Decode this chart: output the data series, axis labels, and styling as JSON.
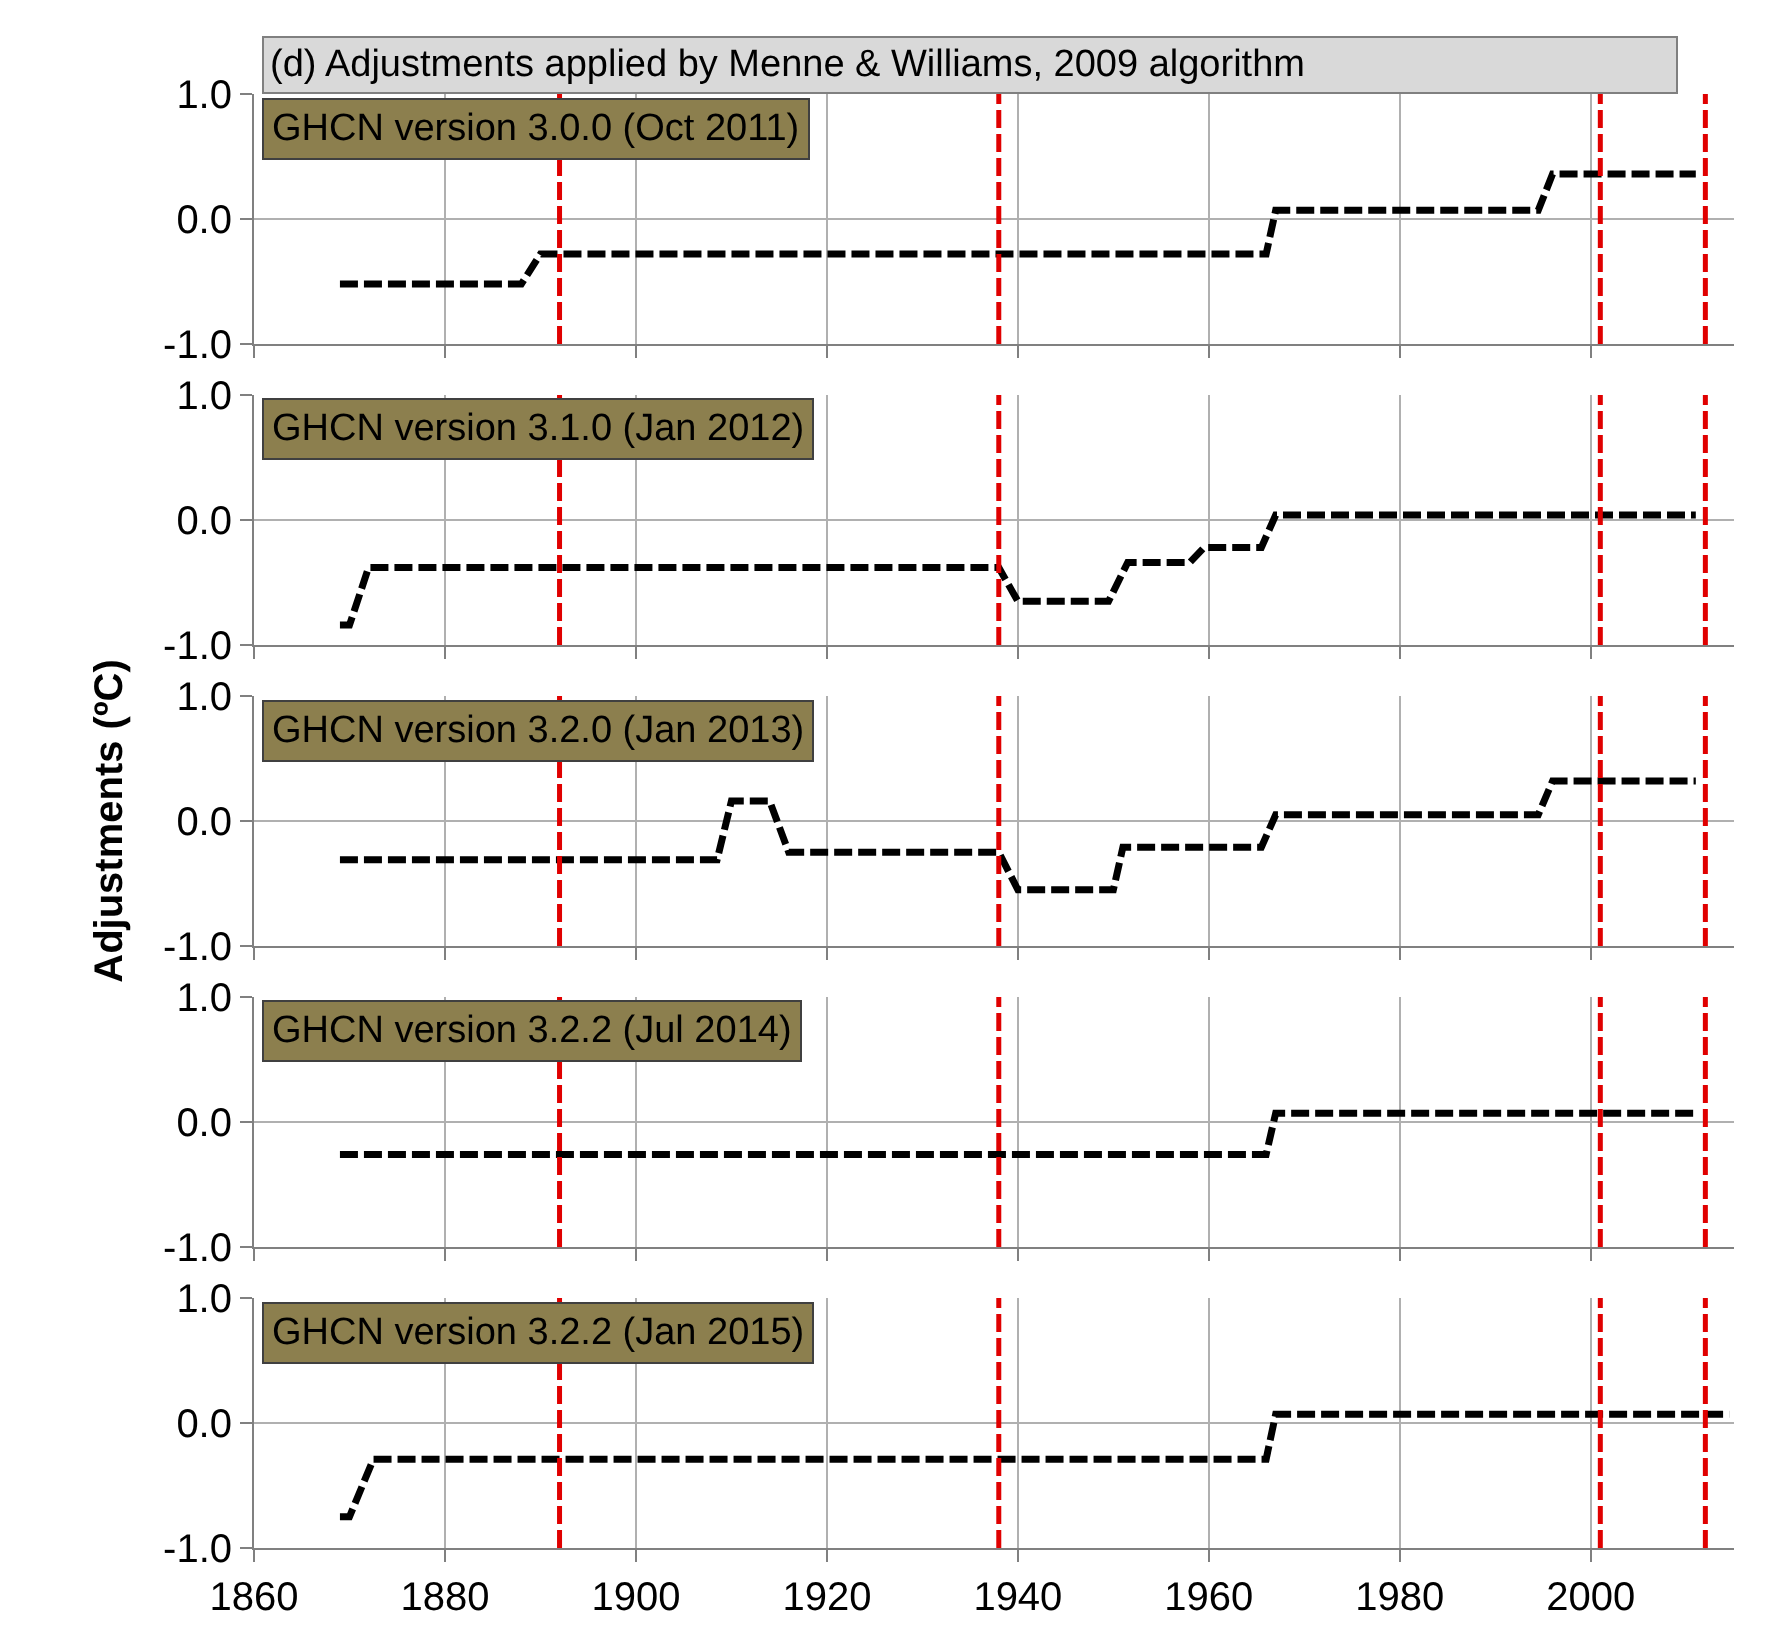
{
  "chart_data": [
    {
      "type": "line",
      "title": "(d) Adjustments applied by Menne & Williams, 2009 algorithm",
      "annotations": [
        "GHCN version 3.0.0 (Oct 2011)"
      ],
      "tick_labels": "y",
      "line_style": "dashed",
      "grid": true,
      "xlim": [
        1860,
        2015
      ],
      "xticks": [
        1860,
        1880,
        1900,
        1920,
        1940,
        1960,
        1980,
        2000
      ],
      "ylim": [
        -1,
        1
      ],
      "yticks": [
        {
          "value": -1,
          "label": "-1.0"
        },
        {
          "value": 0,
          "label": "0.0"
        },
        {
          "value": 1,
          "label": "1.0"
        }
      ],
      "series": [
        {
          "color": "#000000",
          "x": [
            1869,
            1888,
            1890,
            1966,
            1967,
            1994.5,
            1996,
            2011
          ],
          "values": [
            -0.52,
            -0.52,
            -0.28,
            -0.28,
            0.07,
            0.07,
            0.36,
            0.36
          ]
        }
      ],
      "ref_lines": [
        {
          "axis": "x",
          "value": 1892,
          "color": "#e00000",
          "line_style": "dashed"
        },
        {
          "axis": "x",
          "value": 1938,
          "color": "#e00000",
          "line_style": "dashed"
        },
        {
          "axis": "x",
          "value": 2001,
          "color": "#e00000",
          "line_style": "dashed"
        },
        {
          "axis": "x",
          "value": 2012,
          "color": "#e00000",
          "line_style": "dashed"
        }
      ]
    },
    {
      "type": "line",
      "annotations": [
        "GHCN version 3.1.0 (Jan 2012)"
      ],
      "tick_labels": "y",
      "line_style": "dashed",
      "grid": true,
      "xlim": [
        1860,
        2015
      ],
      "xticks": [
        1860,
        1880,
        1900,
        1920,
        1940,
        1960,
        1980,
        2000
      ],
      "ylim": [
        -1,
        1
      ],
      "yticks": [
        {
          "value": -1,
          "label": "-1.0"
        },
        {
          "value": 0,
          "label": "0.0"
        },
        {
          "value": 1,
          "label": "1.0"
        }
      ],
      "series": [
        {
          "color": "#000000",
          "x": [
            1869,
            1870,
            1872,
            1938,
            1940,
            1949.5,
            1951.5,
            1958,
            1959.5,
            1965.5,
            1967,
            2011
          ],
          "values": [
            -0.84,
            -0.84,
            -0.38,
            -0.38,
            -0.65,
            -0.65,
            -0.34,
            -0.34,
            -0.22,
            -0.22,
            0.04,
            0.04
          ]
        }
      ],
      "ref_lines": [
        {
          "axis": "x",
          "value": 1892,
          "color": "#e00000",
          "line_style": "dashed"
        },
        {
          "axis": "x",
          "value": 1938,
          "color": "#e00000",
          "line_style": "dashed"
        },
        {
          "axis": "x",
          "value": 2001,
          "color": "#e00000",
          "line_style": "dashed"
        },
        {
          "axis": "x",
          "value": 2012,
          "color": "#e00000",
          "line_style": "dashed"
        }
      ]
    },
    {
      "type": "line",
      "annotations": [
        "GHCN version 3.2.0 (Jan 2013)"
      ],
      "ylabel": "Adjustments (ºC)",
      "tick_labels": "y",
      "line_style": "dashed",
      "grid": true,
      "xlim": [
        1860,
        2015
      ],
      "xticks": [
        1860,
        1880,
        1900,
        1920,
        1940,
        1960,
        1980,
        2000
      ],
      "ylim": [
        -1,
        1
      ],
      "yticks": [
        {
          "value": -1,
          "label": "-1.0"
        },
        {
          "value": 0,
          "label": "0.0"
        },
        {
          "value": 1,
          "label": "1.0"
        }
      ],
      "series": [
        {
          "color": "#000000",
          "x": [
            1869,
            1908.5,
            1910,
            1914,
            1916,
            1938,
            1940,
            1950,
            1951,
            1965.5,
            1967,
            1994.5,
            1996,
            2011
          ],
          "values": [
            -0.31,
            -0.31,
            0.16,
            0.16,
            -0.25,
            -0.25,
            -0.55,
            -0.55,
            -0.21,
            -0.21,
            0.05,
            0.05,
            0.32,
            0.32
          ]
        }
      ],
      "ref_lines": [
        {
          "axis": "x",
          "value": 1892,
          "color": "#e00000",
          "line_style": "dashed"
        },
        {
          "axis": "x",
          "value": 1938,
          "color": "#e00000",
          "line_style": "dashed"
        },
        {
          "axis": "x",
          "value": 2001,
          "color": "#e00000",
          "line_style": "dashed"
        },
        {
          "axis": "x",
          "value": 2012,
          "color": "#e00000",
          "line_style": "dashed"
        }
      ]
    },
    {
      "type": "line",
      "annotations": [
        "GHCN version 3.2.2 (Jul 2014)"
      ],
      "tick_labels": "y",
      "line_style": "dashed",
      "grid": true,
      "xlim": [
        1860,
        2015
      ],
      "xticks": [
        1860,
        1880,
        1900,
        1920,
        1940,
        1960,
        1980,
        2000
      ],
      "ylim": [
        -1,
        1
      ],
      "yticks": [
        {
          "value": -1,
          "label": "-1.0"
        },
        {
          "value": 0,
          "label": "0.0"
        },
        {
          "value": 1,
          "label": "1.0"
        }
      ],
      "series": [
        {
          "color": "#000000",
          "x": [
            1869,
            1966,
            1967,
            2011
          ],
          "values": [
            -0.26,
            -0.26,
            0.07,
            0.07
          ]
        }
      ],
      "ref_lines": [
        {
          "axis": "x",
          "value": 1892,
          "color": "#e00000",
          "line_style": "dashed"
        },
        {
          "axis": "x",
          "value": 1938,
          "color": "#e00000",
          "line_style": "dashed"
        },
        {
          "axis": "x",
          "value": 2001,
          "color": "#e00000",
          "line_style": "dashed"
        },
        {
          "axis": "x",
          "value": 2012,
          "color": "#e00000",
          "line_style": "dashed"
        }
      ]
    },
    {
      "type": "line",
      "annotations": [
        "GHCN version 3.2.2 (Jan 2015)"
      ],
      "line_style": "dashed",
      "grid": true,
      "xlim": [
        1860,
        2015
      ],
      "xticks": [
        1860,
        1880,
        1900,
        1920,
        1940,
        1960,
        1980,
        2000
      ],
      "ylim": [
        -1,
        1
      ],
      "yticks": [
        {
          "value": -1,
          "label": "-1.0"
        },
        {
          "value": 0,
          "label": "0.0"
        },
        {
          "value": 1,
          "label": "1.0"
        }
      ],
      "series": [
        {
          "color": "#000000",
          "x": [
            1869,
            1870,
            1872.5,
            1966,
            1967,
            2014.5
          ],
          "values": [
            -0.75,
            -0.75,
            -0.29,
            -0.29,
            0.07,
            0.07
          ]
        }
      ],
      "ref_lines": [
        {
          "axis": "x",
          "value": 1892,
          "color": "#e00000",
          "line_style": "dashed"
        },
        {
          "axis": "x",
          "value": 1938,
          "color": "#e00000",
          "line_style": "dashed"
        },
        {
          "axis": "x",
          "value": 2001,
          "color": "#e00000",
          "line_style": "dashed"
        },
        {
          "axis": "x",
          "value": 2012,
          "color": "#e00000",
          "line_style": "dashed"
        }
      ]
    }
  ]
}
